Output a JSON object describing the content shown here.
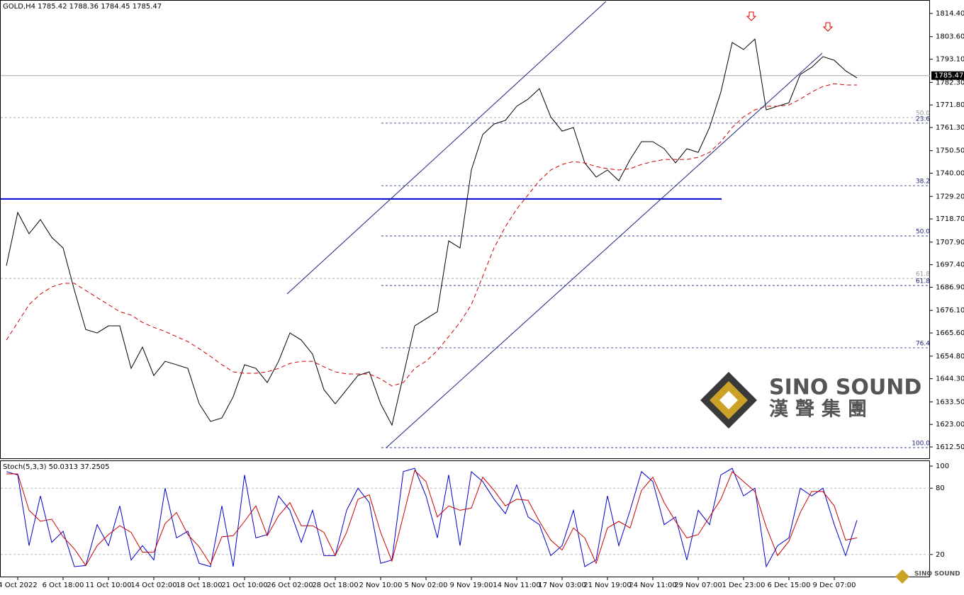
{
  "chart_data": [
    {
      "type": "line",
      "title": "GOLD,H4  1785.42 1788.36 1784.45 1785.47",
      "categories": [
        null,
        "4 Oct 2022",
        null,
        null,
        null,
        "6 Oct 18:00",
        null,
        null,
        null,
        "11 Oct 10:00",
        null,
        null,
        null,
        "14 Oct 02:00",
        null,
        null,
        null,
        "18 Oct 18:00",
        null,
        null,
        null,
        "21 Oct 10:00",
        null,
        null,
        null,
        "26 Oct 02:00",
        null,
        null,
        null,
        "28 Oct 18:00",
        null,
        null,
        null,
        "2 Nov 10:00",
        null,
        null,
        null,
        "5 Nov 02:00",
        null,
        null,
        null,
        "9 Nov 19:00",
        null,
        null,
        null,
        "14 Nov 11:00",
        null,
        null,
        null,
        "17 Nov 03:00",
        null,
        null,
        null,
        "21 Nov 19:00",
        null,
        null,
        null,
        "24 Nov 11:00",
        null,
        null,
        null,
        "29 Nov 07:00",
        null,
        null,
        null,
        "1 Dec 23:00",
        null,
        null,
        null,
        "6 Dec 15:00",
        null,
        null,
        null,
        "9 Dec 07:00",
        null,
        null
      ],
      "series": [
        {
          "name": "Close",
          "color": "#000000",
          "values": [
            1696.9,
            1721.7,
            1711.8,
            1718.4,
            1710.1,
            1705.2,
            1685.4,
            1667.2,
            1665.6,
            1668.9,
            1668.9,
            1649.1,
            1659.0,
            1645.8,
            1652.4,
            1650.8,
            1649.1,
            1632.6,
            1624.4,
            1626.0,
            1635.9,
            1650.8,
            1649.1,
            1642.5,
            1652.4,
            1665.6,
            1662.3,
            1655.7,
            1639.2,
            1632.6,
            1639.2,
            1645.8,
            1647.5,
            1632.6,
            1622.7,
            1645.8,
            1668.9,
            1672.2,
            1675.5,
            1708.5,
            1705.2,
            1741.5,
            1758.0,
            1762.9,
            1764.6,
            1771.2,
            1774.5,
            1779.4,
            1766.2,
            1759.6,
            1761.3,
            1744.8,
            1738.2,
            1741.5,
            1736.5,
            1746.4,
            1754.7,
            1754.7,
            1751.4,
            1744.8,
            1751.4,
            1749.7,
            1761.3,
            1777.8,
            1800.9,
            1797.6,
            1802.5,
            1769.5,
            1771.2,
            1772.8,
            1786.0,
            1789.3,
            1794.3,
            1792.6,
            1787.7,
            1784.4
          ]
        },
        {
          "name": "MA",
          "color": "#cc0000",
          "values": [
            1662.3,
            1670.5,
            1678.8,
            1683.7,
            1687.0,
            1688.7,
            1688.7,
            1685.4,
            1682.1,
            1678.8,
            1675.5,
            1673.9,
            1670.5,
            1668.2,
            1666.3,
            1663.9,
            1661.6,
            1658.3,
            1654.7,
            1650.8,
            1647.5,
            1646.8,
            1646.8,
            1647.5,
            1649.1,
            1651.4,
            1652.4,
            1652.4,
            1649.8,
            1647.5,
            1646.5,
            1646.5,
            1646.5,
            1644.2,
            1640.9,
            1642.5,
            1649.1,
            1652.4,
            1657.4,
            1663.9,
            1670.5,
            1678.8,
            1692.0,
            1705.2,
            1715.1,
            1723.3,
            1729.9,
            1736.5,
            1741.5,
            1744.1,
            1745.4,
            1744.8,
            1743.1,
            1742.1,
            1741.5,
            1742.1,
            1744.1,
            1745.4,
            1746.4,
            1746.4,
            1746.4,
            1747.4,
            1749.7,
            1754.7,
            1761.3,
            1766.2,
            1769.5,
            1771.2,
            1771.2,
            1771.8,
            1774.5,
            1777.8,
            1780.4,
            1781.7,
            1781.1,
            1781.1
          ]
        }
      ],
      "ylim": [
        1606.9,
        1820.67
      ],
      "yticks": [
        {
          "value": 1814.4,
          "label": "1814.40"
        },
        {
          "value": 1803.6,
          "label": "1803.60"
        },
        {
          "value": 1793.1,
          "label": "1793.10"
        },
        {
          "value": 1782.3,
          "label": "1782.30"
        },
        {
          "value": 1771.8,
          "label": "1771.80"
        },
        {
          "value": 1761.3,
          "label": "1761.30"
        },
        {
          "value": 1750.5,
          "label": "1750.50"
        },
        {
          "value": 1740.0,
          "label": "1740.00"
        },
        {
          "value": 1729.2,
          "label": "1729.20"
        },
        {
          "value": 1718.7,
          "label": "1718.70"
        },
        {
          "value": 1707.9,
          "label": "1707.90"
        },
        {
          "value": 1697.4,
          "label": "1697.40"
        },
        {
          "value": 1686.9,
          "label": "1686.90"
        },
        {
          "value": 1676.1,
          "label": "1676.10"
        },
        {
          "value": 1665.6,
          "label": "1665.60"
        },
        {
          "value": 1654.8,
          "label": "1654.80"
        },
        {
          "value": 1644.3,
          "label": "1644.30"
        },
        {
          "value": 1633.5,
          "label": "1633.50"
        },
        {
          "value": 1623.0,
          "label": "1623.00"
        },
        {
          "value": 1612.5,
          "label": "1612.50"
        }
      ],
      "last_price": 1785.47,
      "hline": {
        "value": 1728.0,
        "color": "#0000cc"
      },
      "fib_levels": [
        {
          "label": "50.0",
          "value": 1765.9,
          "color": "#999999"
        },
        {
          "label": "23.6",
          "value": 1763.3,
          "color": "#1a237e"
        },
        {
          "label": "38.2",
          "value": 1734.2,
          "color": "#1a237e"
        },
        {
          "label": "50.0",
          "value": 1710.8,
          "color": "#1a237e"
        },
        {
          "label": "61.8",
          "value": 1691.0,
          "color": "#999999"
        },
        {
          "label": "61.8",
          "value": 1687.7,
          "color": "#1a237e"
        },
        {
          "label": "76.4",
          "value": 1658.7,
          "color": "#1a237e"
        },
        {
          "label": "100.0",
          "value": 1612.2,
          "color": "#1a237e"
        }
      ],
      "watermark": "SINO SOUND",
      "watermark_cn": "漢聲集團"
    },
    {
      "type": "line",
      "title": "Stoch(5,3,3) 50.0313 37.2505",
      "series": [
        {
          "name": "Main",
          "color": "#0000cc",
          "values": [
            95,
            92,
            28,
            73,
            31,
            41,
            9,
            10,
            47,
            28,
            64,
            15,
            28,
            15,
            80,
            35,
            41,
            12,
            9,
            64,
            9,
            92,
            35,
            38,
            73,
            60,
            31,
            60,
            19,
            19,
            60,
            80,
            67,
            12,
            15,
            95,
            98,
            73,
            35,
            92,
            28,
            95,
            86,
            70,
            57,
            83,
            54,
            47,
            19,
            28,
            60,
            9,
            15,
            73,
            28,
            60,
            95,
            86,
            47,
            54,
            15,
            60,
            47,
            92,
            98,
            73,
            80,
            9,
            28,
            35,
            80,
            73,
            80,
            47,
            19,
            51
          ]
        },
        {
          "name": "Signal",
          "color": "#cc0000",
          "values": [
            93,
            93,
            60,
            50,
            52,
            36,
            25,
            10,
            28,
            38,
            46,
            40,
            22,
            22,
            48,
            58,
            38,
            27,
            11,
            36,
            37,
            50,
            64,
            37,
            55,
            67,
            46,
            46,
            40,
            19,
            40,
            70,
            74,
            40,
            14,
            55,
            96,
            86,
            54,
            64,
            60,
            62,
            90,
            78,
            64,
            70,
            69,
            50,
            33,
            24,
            44,
            35,
            12,
            44,
            50,
            44,
            78,
            90,
            67,
            50,
            35,
            38,
            54,
            70,
            95,
            86,
            77,
            45,
            19,
            32,
            58,
            77,
            77,
            64,
            33,
            35
          ]
        }
      ],
      "ylim": [
        0,
        104.5
      ],
      "yticks": [
        100,
        80,
        20
      ]
    }
  ]
}
